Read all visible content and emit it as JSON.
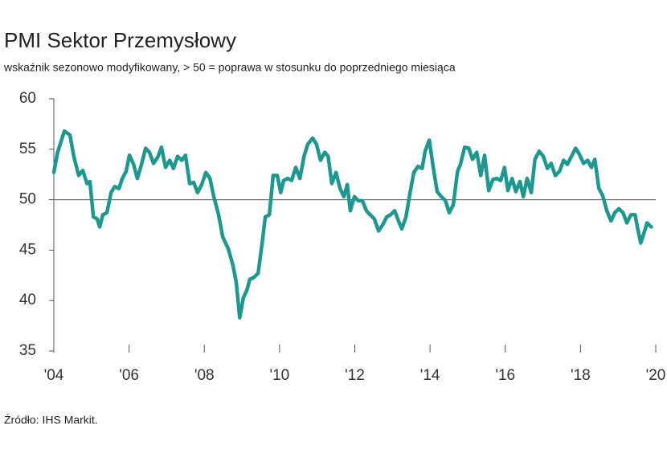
{
  "chart_data": {
    "type": "line",
    "title": "PMI Sektor Przemysłowy",
    "subtitle": "wskaźnik sezonowo modyfikowany, > 50 = poprawa w stosunku do poprzedniego miesiąca",
    "source": "Źródło:  IHS Markit.",
    "x": [
      2004.0,
      2004.1,
      2004.28,
      2004.43,
      2004.53,
      2004.66,
      2004.77,
      2004.88,
      2004.96,
      2005.05,
      2005.15,
      2005.22,
      2005.3,
      2005.41,
      2005.52,
      2005.62,
      2005.73,
      2005.82,
      2005.92,
      2006.01,
      2006.12,
      2006.22,
      2006.33,
      2006.44,
      2006.54,
      2006.65,
      2006.76,
      2006.86,
      2006.97,
      2007.08,
      2007.18,
      2007.29,
      2007.4,
      2007.5,
      2007.61,
      2007.72,
      2007.82,
      2007.93,
      2008.04,
      2008.15,
      2008.25,
      2008.38,
      2008.49,
      2008.64,
      2008.76,
      2008.85,
      2008.94,
      2009.04,
      2009.13,
      2009.21,
      2009.32,
      2009.43,
      2009.53,
      2009.62,
      2009.73,
      2009.83,
      2009.94,
      2010.03,
      2010.11,
      2010.22,
      2010.32,
      2010.43,
      2010.54,
      2010.65,
      2010.75,
      2010.88,
      2010.98,
      2011.09,
      2011.2,
      2011.29,
      2011.39,
      2011.5,
      2011.61,
      2011.71,
      2011.8,
      2011.88,
      2011.99,
      2012.09,
      2012.2,
      2012.31,
      2012.41,
      2012.52,
      2012.63,
      2012.74,
      2012.85,
      2012.95,
      2013.06,
      2013.16,
      2013.25,
      2013.36,
      2013.47,
      2013.57,
      2013.68,
      2013.79,
      2013.87,
      2013.98,
      2014.09,
      2014.19,
      2014.3,
      2014.41,
      2014.51,
      2014.62,
      2014.73,
      2014.81,
      2014.92,
      2015.03,
      2015.13,
      2015.24,
      2015.35,
      2015.45,
      2015.56,
      2015.67,
      2015.77,
      2015.88,
      2015.98,
      2016.07,
      2016.18,
      2016.28,
      2016.39,
      2016.48,
      2016.58,
      2016.69,
      2016.79,
      2016.9,
      2017.01,
      2017.12,
      2017.22,
      2017.33,
      2017.44,
      2017.55,
      2017.65,
      2017.76,
      2017.87,
      2017.97,
      2018.08,
      2018.19,
      2018.29,
      2018.38,
      2018.49,
      2018.59,
      2018.7,
      2018.81,
      2018.91,
      2019.02,
      2019.13,
      2019.23,
      2019.34,
      2019.45,
      2019.51,
      2019.6,
      2019.68,
      2019.77,
      2019.88
    ],
    "series": [
      {
        "color": "#1b9990",
        "values": [
          52.7,
          54.7,
          56.8,
          56.4,
          54.3,
          52.4,
          52.9,
          51.6,
          51.8,
          48.3,
          48.1,
          47.3,
          48.5,
          48.7,
          50.7,
          51.3,
          51.1,
          52.1,
          52.8,
          54.4,
          53.5,
          52.1,
          53.5,
          55.1,
          54.7,
          53.6,
          54.2,
          55.2,
          53.2,
          53.9,
          53.1,
          54.3,
          53.9,
          54.4,
          51.6,
          51.7,
          50.7,
          51.5,
          52.7,
          52.1,
          50.3,
          48.5,
          46.3,
          45.1,
          43.5,
          41.8,
          38.3,
          40.3,
          41.0,
          42.1,
          42.3,
          42.7,
          45.5,
          48.3,
          48.5,
          52.4,
          52.4,
          50.7,
          51.9,
          52.1,
          51.9,
          53.2,
          52.1,
          54.3,
          55.5,
          56.1,
          55.5,
          53.9,
          54.7,
          54.3,
          51.6,
          52.7,
          51.1,
          50.3,
          51.5,
          48.9,
          50.3,
          49.9,
          49.9,
          48.9,
          48.5,
          48.1,
          46.9,
          47.5,
          48.3,
          48.5,
          48.9,
          47.9,
          47.1,
          48.3,
          50.7,
          52.7,
          53.3,
          53.1,
          54.8,
          55.9,
          53.1,
          50.8,
          50.3,
          49.9,
          48.7,
          49.5,
          52.8,
          53.5,
          55.2,
          55.1,
          54.0,
          54.7,
          52.4,
          54.4,
          50.9,
          52.0,
          52.1,
          51.9,
          53.2,
          50.9,
          52.1,
          50.8,
          51.8,
          50.3,
          52.1,
          50.7,
          54.0,
          54.8,
          54.3,
          53.1,
          53.6,
          52.4,
          52.8,
          53.9,
          53.5,
          54.3,
          55.1,
          54.5,
          53.6,
          53.9,
          53.2,
          54.0,
          51.1,
          50.4,
          48.9,
          47.9,
          48.7,
          49.1,
          48.7,
          47.7,
          48.5,
          48.5,
          47.3,
          45.7,
          46.6,
          47.7,
          47.3
        ]
      }
    ],
    "xlim": [
      2004,
      2020
    ],
    "xticks": [
      {
        "value": 2004,
        "label": "'04"
      },
      {
        "value": 2006,
        "label": "'06"
      },
      {
        "value": 2008,
        "label": "'08"
      },
      {
        "value": 2010,
        "label": "'10"
      },
      {
        "value": 2012,
        "label": "'12"
      },
      {
        "value": 2014,
        "label": "'14"
      },
      {
        "value": 2016,
        "label": "'16"
      },
      {
        "value": 2018,
        "label": "'18"
      },
      {
        "value": 2020,
        "label": "'20"
      }
    ],
    "ylim": [
      35,
      60
    ],
    "yticks": [
      35,
      40,
      45,
      50,
      55,
      60
    ],
    "reference_line": 50
  }
}
